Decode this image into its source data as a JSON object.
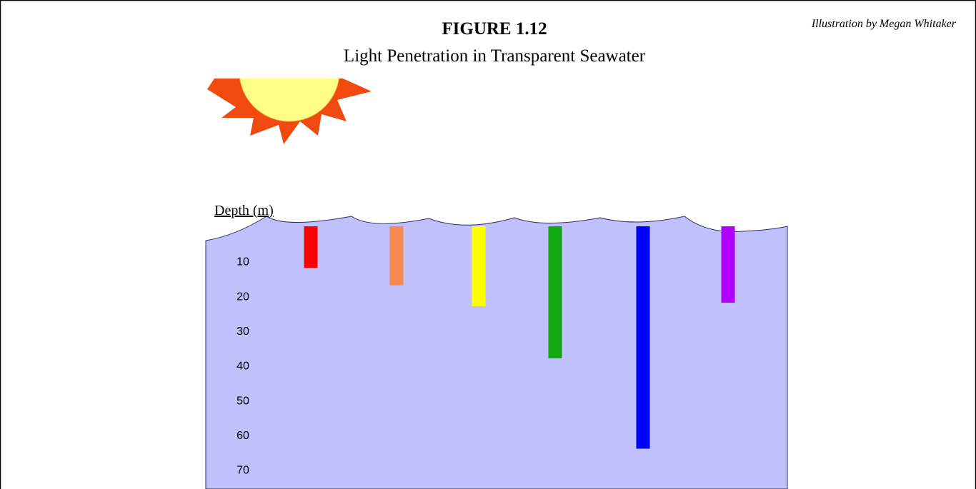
{
  "chart_data": {
    "type": "bar",
    "title": "FIGURE 1.12",
    "subtitle": "Light Penetration in Transparent Seawater",
    "credit": "Illustration by Megan Whitaker",
    "y_label": "Depth (m)",
    "categories": [
      null,
      null,
      null,
      null,
      null,
      null
    ],
    "values": [
      12,
      17,
      23,
      38,
      64,
      22
    ],
    "colors": [
      "#ff0000",
      "#f58a50",
      "#ffff00",
      "#10a810",
      "#0000ff",
      "#b000ff"
    ],
    "ylim": [
      0,
      75
    ],
    "yticks": [
      10,
      20,
      30,
      40,
      50,
      60,
      70
    ],
    "y_inverted": true,
    "water_color": "#c0c0fc"
  }
}
